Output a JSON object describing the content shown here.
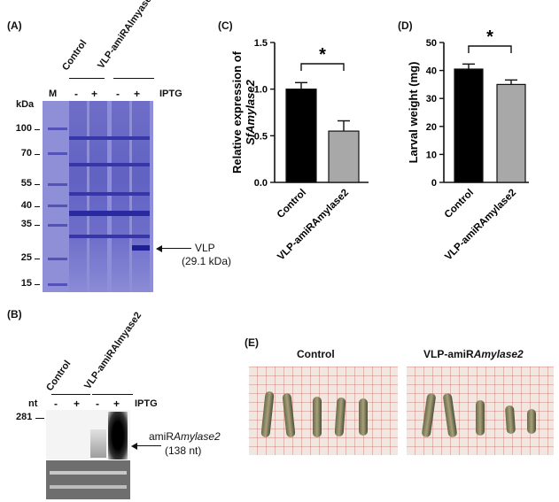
{
  "panel_a": {
    "label": "(A)",
    "group_control": "Control",
    "group_vlp": "VLP-amiRAlmyase2",
    "lane_m": "M",
    "iptg": "IPTG",
    "lane_signs": [
      "-",
      "+",
      "-",
      "+"
    ],
    "unit": "kDa",
    "mw_markers": [
      "100",
      "70",
      "55",
      "40",
      "35",
      "25",
      "15"
    ],
    "arrow_label": "VLP",
    "arrow_sub": "(29.1 kDa)"
  },
  "panel_b": {
    "label": "(B)",
    "group_control": "Control",
    "group_vlp": "VLP-amiRAlmyase2",
    "nt_label": "nt",
    "iptg": "IPTG",
    "lane_signs": [
      "-",
      "+",
      "-",
      "+"
    ],
    "size_marker": "281",
    "arrow_label_prefix": "amiR",
    "arrow_label_italic": "Amylase2",
    "arrow_sub": "(138 nt)"
  },
  "panel_c": {
    "label": "(C)"
  },
  "panel_d": {
    "label": "(D)"
  },
  "panel_e": {
    "label": "(E)",
    "title_control": "Control",
    "title_vlp_prefix": "VLP-amiR",
    "title_vlp_italic": "Amylase2"
  },
  "colors": {
    "control_bar": "#000000",
    "vlp_bar": "#a8a8a8"
  },
  "chart_data": [
    {
      "type": "bar",
      "categories": [
        "Control",
        "VLP-amiRAmylase2"
      ],
      "values": [
        1.0,
        0.55
      ],
      "errors": [
        0.07,
        0.11
      ],
      "ylabel_line1": "Relative expression of",
      "ylabel_line2": "SfAmylase2",
      "ylim": [
        0.0,
        1.5
      ],
      "yticks": [
        "0.0",
        "0.5",
        "1.0",
        "1.5"
      ],
      "annotation": "*"
    },
    {
      "type": "bar",
      "categories": [
        "Control",
        "VLP-amiRAmylase2"
      ],
      "values": [
        40.5,
        35.0
      ],
      "errors": [
        1.8,
        1.6
      ],
      "ylabel": "Larval weight (mg)",
      "ylim": [
        0,
        50
      ],
      "yticks": [
        "0",
        "10",
        "20",
        "30",
        "40",
        "50"
      ],
      "annotation": "*"
    }
  ]
}
